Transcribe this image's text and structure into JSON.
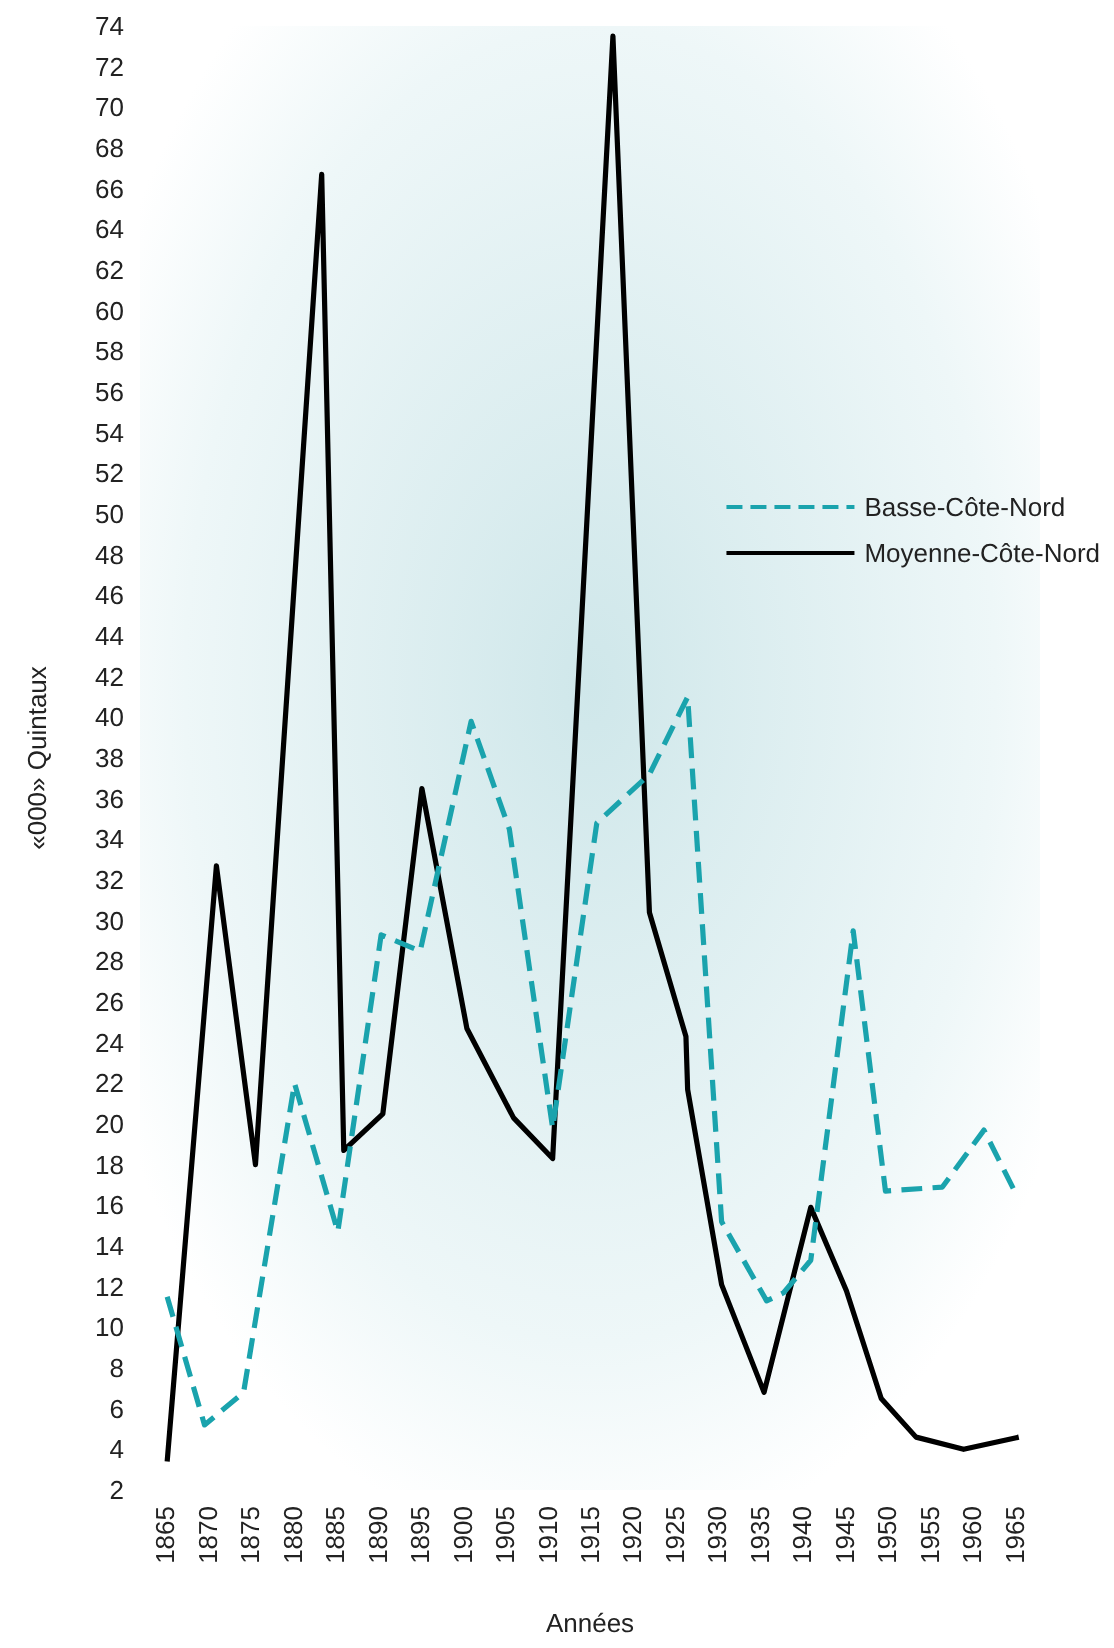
{
  "chart_data": {
    "type": "line",
    "xlabel": "Années",
    "ylabel": "«000» Quintaux",
    "xlim": [
      1862,
      1968
    ],
    "xticks": [
      1865,
      1870,
      1875,
      1880,
      1885,
      1890,
      1895,
      1900,
      1905,
      1910,
      1915,
      1920,
      1925,
      1930,
      1935,
      1940,
      1945,
      1950,
      1955,
      1960,
      1965
    ],
    "ylim": [
      2,
      74
    ],
    "yticks": [
      2,
      4,
      6,
      8,
      10,
      12,
      14,
      16,
      18,
      20,
      22,
      24,
      26,
      28,
      30,
      32,
      34,
      36,
      38,
      40,
      42,
      44,
      46,
      48,
      50,
      52,
      54,
      56,
      58,
      60,
      62,
      64,
      66,
      68,
      70,
      72,
      74
    ],
    "grid": false,
    "legend": "right",
    "marker": "none",
    "series": [
      {
        "name": "Basse-Côte-Nord",
        "color": "#1aa3ad",
        "line_style": "dashed",
        "x": [
          1865.2,
          1869.6,
          1874.2,
          1880.2,
          1885.3,
          1890.4,
          1895,
          1901,
          1905.5,
          1910.6,
          1915.8,
          1922,
          1926.5,
          1930.5,
          1935.8,
          1937.8,
          1941,
          1946,
          1949.8,
          1956.5,
          1961.4,
          1965
        ],
        "values": [
          11.5,
          5.2,
          6.8,
          22,
          14.7,
          29.3,
          28.5,
          39.8,
          34.5,
          19.8,
          34.8,
          37.2,
          41,
          15.2,
          11.3,
          11.7,
          13.3,
          29.5,
          16.7,
          16.9,
          19.7,
          16.7
        ]
      },
      {
        "name": "Moyenne-Côte-Nord",
        "color": "#000000",
        "line_style": "solid",
        "x": [
          1865.2,
          1871,
          1875.6,
          1883.4,
          1886,
          1890.6,
          1895.2,
          1900.5,
          1906,
          1910.6,
          1917.7,
          1922,
          1926.3,
          1926.5,
          1930.5,
          1935.5,
          1941,
          1945.2,
          1949.3,
          1953.4,
          1959,
          1965.5
        ],
        "values": [
          3.4,
          32.7,
          18,
          66.7,
          18.7,
          20.5,
          36.5,
          24.7,
          20.3,
          18.3,
          73.5,
          30.4,
          24.3,
          21.7,
          12.1,
          6.8,
          15.9,
          11.8,
          6.5,
          4.6,
          4,
          4.6
        ]
      }
    ]
  }
}
